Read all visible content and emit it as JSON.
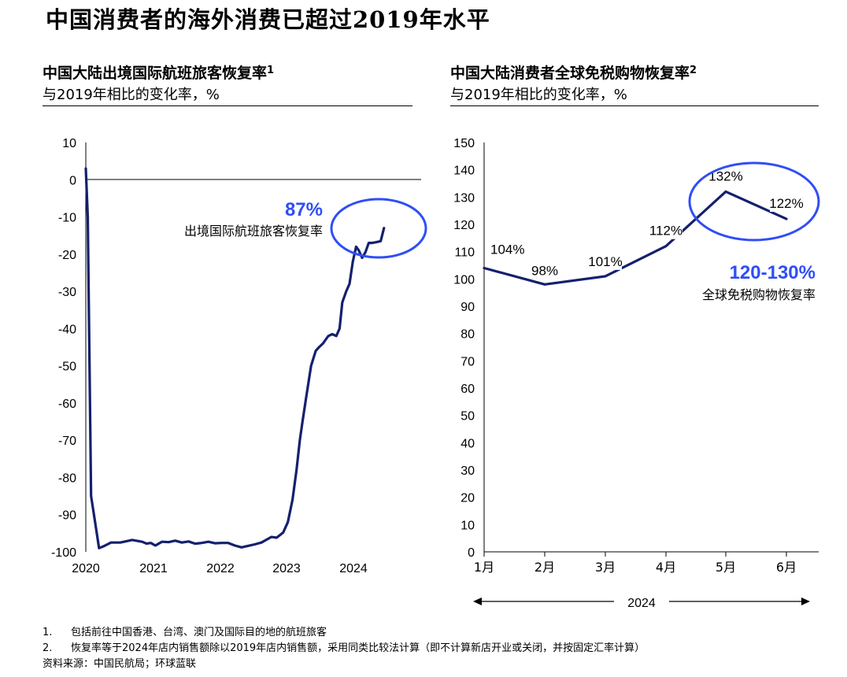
{
  "page_title": "中国消费者的海外消费已超过2019年水平",
  "colors": {
    "navy": "#14206e",
    "blue": "#2f4ef5",
    "black": "#000000"
  },
  "chart_data": [
    {
      "type": "line",
      "title": "中国大陆出境国际航班旅客恢复率",
      "title_footnote": "1",
      "subtitle": "与2019年相比的变化率，%",
      "ylim": [
        -100,
        10
      ],
      "yticks": [
        10,
        0,
        -10,
        -20,
        -30,
        -40,
        -50,
        -60,
        -70,
        -80,
        -90,
        -100
      ],
      "xlim": [
        2020,
        2024.55
      ],
      "xticks": [
        "2020",
        "2021",
        "2022",
        "2023",
        "2024"
      ],
      "x": [
        2020.0,
        2020.03,
        2020.08,
        2020.14,
        2020.2,
        2020.27,
        2020.38,
        2020.52,
        2020.7,
        2020.85,
        2020.92,
        2020.98,
        2021.05,
        2021.15,
        2021.25,
        2021.35,
        2021.45,
        2021.55,
        2021.65,
        2021.75,
        2021.85,
        2021.95,
        2022.05,
        2022.15,
        2022.25,
        2022.35,
        2022.45,
        2022.55,
        2022.65,
        2022.72,
        2022.8,
        2022.88,
        2022.93,
        2022.98,
        2023.05,
        2023.12,
        2023.18,
        2023.23,
        2023.27,
        2023.33,
        2023.4,
        2023.47,
        2023.52,
        2023.58,
        2023.62,
        2023.66,
        2023.72,
        2023.78,
        2023.83,
        2023.87,
        2023.93,
        2023.98,
        2024.03,
        2024.08,
        2024.12,
        2024.17,
        2024.22,
        2024.27,
        2024.32,
        2024.38,
        2024.45,
        2024.5
      ],
      "y": [
        3,
        -10,
        -85,
        -92,
        -99,
        -98.5,
        -97.5,
        -97.5,
        -96.8,
        -97.3,
        -97.8,
        -97.6,
        -98.3,
        -97.3,
        -97.4,
        -97,
        -97.5,
        -97.2,
        -97.8,
        -97.6,
        -97.3,
        -97.7,
        -97.6,
        -97.6,
        -98.3,
        -98.8,
        -98.4,
        -98,
        -97.5,
        -96.8,
        -96,
        -96.2,
        -95.5,
        -94.8,
        -92,
        -86,
        -78,
        -70,
        -65,
        -58,
        -50,
        -46,
        -45,
        -44,
        -43,
        -42,
        -41.5,
        -42,
        -40,
        -33,
        -30,
        -28,
        -22,
        -18,
        -19,
        -21,
        -19.5,
        -17,
        -17,
        -16.8,
        -16.5,
        -13
      ],
      "circle_label": "87%",
      "series_label": "出境国际航班旅客恢复率"
    },
    {
      "type": "line",
      "title": "中国大陆消费者全球免税购物恢复率",
      "title_footnote": "2",
      "subtitle": "与2019年相比的变化率，%",
      "ylim": [
        0,
        150
      ],
      "yticks": [
        150,
        140,
        130,
        120,
        110,
        100,
        90,
        80,
        70,
        60,
        50,
        40,
        30,
        20,
        10,
        0
      ],
      "categories": [
        "1月",
        "2月",
        "3月",
        "4月",
        "5月",
        "6月"
      ],
      "values": [
        104,
        98,
        101,
        112,
        132,
        122
      ],
      "data_labels": [
        "104%",
        "98%",
        "101%",
        "112%",
        "132%",
        "122%"
      ],
      "year_label": "2024",
      "range_label": "120-130%",
      "series_label": "全球免税购物恢复率"
    }
  ],
  "footnotes": [
    {
      "num": "1.",
      "text": "包括前往中国香港、台湾、澳门及国际目的地的航班旅客"
    },
    {
      "num": "2.",
      "text": "恢复率等于2024年店内销售额除以2019年店内销售额，采用同类比较法计算（即不计算新店开业或关闭，并按固定汇率计算）"
    }
  ],
  "source": "资料来源：中国民航局；环球蓝联"
}
